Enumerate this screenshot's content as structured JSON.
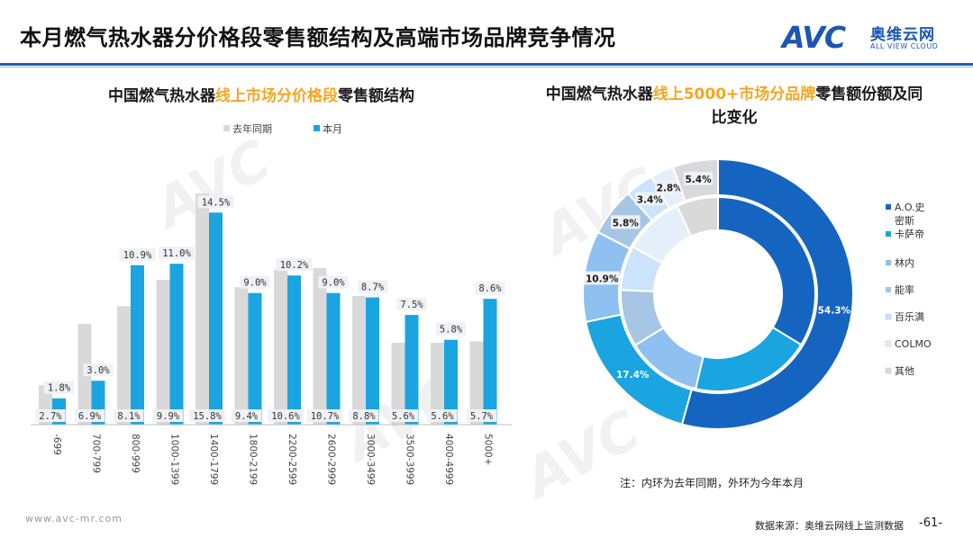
{
  "header": {
    "title": "本月燃气热水器分价格段零售额结构及高端市场品牌竞争情况",
    "logo_text": "AVC",
    "logo_cn": "奥维云网",
    "logo_en": "ALL VIEW CLOUD"
  },
  "colors": {
    "prev": "#d9d9d9",
    "curr": "#1aa4e0",
    "accent": "#f5a623",
    "brand": "#1c56b3"
  },
  "bar_chart": {
    "title_pre": "中国燃气热水器",
    "title_hl": "线上市场分价格段",
    "title_post": "零售额结构"
  },
  "pie_chart": {
    "title_pre": "中国燃气热水器",
    "title_hl": "线上5000+市场分品牌",
    "title_post": "零售额份额及同比变化"
  },
  "chart_data": [
    {
      "type": "bar",
      "categories": [
        "-699",
        "700-799",
        "800-999",
        "1000-1399",
        "1400-1799",
        "1800-2199",
        "2200-2599",
        "2600-2999",
        "3000-3499",
        "3500-3999",
        "4000-4999",
        "5000+"
      ],
      "series": [
        {
          "name": "去年同期",
          "values": [
            2.7,
            6.9,
            8.1,
            9.9,
            15.8,
            9.4,
            10.6,
            10.7,
            8.8,
            5.6,
            5.6,
            5.7
          ]
        },
        {
          "name": "本月",
          "values": [
            1.8,
            3.0,
            10.9,
            11.0,
            14.5,
            9.0,
            10.2,
            9.0,
            8.7,
            7.5,
            5.8,
            8.6
          ]
        }
      ],
      "value_labels": {
        "prev": [
          "2.7%",
          "6.9%",
          "8.1%",
          "9.9%",
          "15.8%",
          "9.4%",
          "10.6%",
          "10.7%",
          "8.8%",
          "5.6%",
          "5.6%",
          "5.7%"
        ],
        "curr": [
          "1.8%",
          "3.0%",
          "10.9%",
          "11.0%",
          "14.5%",
          "9.0%",
          "10.2%",
          "9.0%",
          "8.7%",
          "7.5%",
          "5.8%",
          "8.6%"
        ]
      },
      "ylim": [
        0,
        17
      ],
      "legend_position": "top"
    },
    {
      "type": "pie",
      "categories": [
        "A.O.史密斯",
        "卡萨帝",
        "林内",
        "能率",
        "百乐满",
        "COLMO",
        "其他"
      ],
      "colors": [
        "#1565c0",
        "#1aa4e0",
        "#8ec0f0",
        "#a7c6e6",
        "#cbe3fb",
        "#e4effa",
        "#d9d9d9"
      ],
      "outer_values": [
        54.3,
        17.4,
        10.9,
        5.8,
        3.4,
        2.8,
        5.4
      ],
      "outer_labels": [
        "54.3%",
        "17.4%",
        "10.9%",
        "5.8%",
        "3.4%",
        "2.8%",
        "5.4%"
      ],
      "inner_values": [
        33.7,
        20.0,
        12.5,
        9.5,
        7.4,
        10.0,
        6.9
      ],
      "legend_position": "right"
    }
  ],
  "note": "注：内环为去年同期，外环为今年本月",
  "source": "数据来源：奥维云网线上监测数据",
  "page_number": "-61-",
  "website": "www.avc-mr.com"
}
